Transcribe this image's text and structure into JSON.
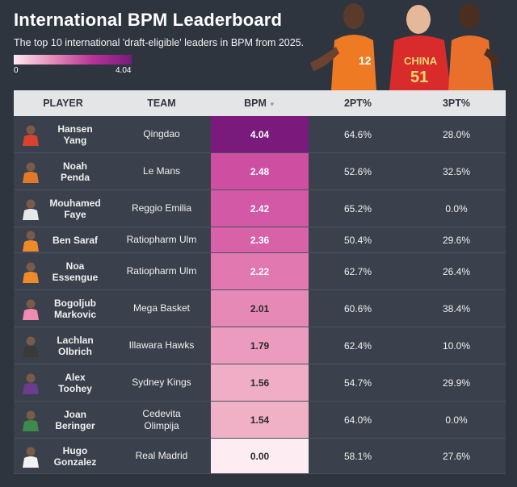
{
  "title": "International BPM Leaderboard",
  "subtitle": "The top 10 international 'draft-eligible' leaders in BPM from 2025.",
  "scale": {
    "min_label": "0",
    "max_label": "4.04"
  },
  "headers": {
    "player": "PLAYER",
    "team": "TEAM",
    "bpm": "BPM",
    "two_pt": "2PT%",
    "three_pt": "3PT%"
  },
  "photo_jersey_text": "CHINA",
  "photo_jersey_number": "51",
  "photo_jersey_number_left": "12",
  "colors": {
    "background": "#2f353f",
    "header_bg": "#e4e5e7",
    "bpm_high": "#7a1a7d",
    "bpm_low": "#fde8ef"
  },
  "chart_data": {
    "type": "table",
    "title": "International BPM Leaderboard",
    "subtitle": "The top 10 international 'draft-eligible' leaders in BPM from 2025.",
    "columns": [
      "PLAYER",
      "TEAM",
      "BPM",
      "2PT%",
      "3PT%"
    ],
    "sort_column": "BPM",
    "color_scale": {
      "column": "BPM",
      "min": 0,
      "max": 4.04
    },
    "rows": [
      {
        "player": "Hansen Yang",
        "player_lines": [
          "Hansen",
          "Yang"
        ],
        "team": "Qingdao",
        "team_lines": [
          "Qingdao"
        ],
        "bpm": 4.04,
        "bpm_text": "4.04",
        "two_pt": "64.6%",
        "three_pt": "28.0%",
        "jersey": "#d8412f"
      },
      {
        "player": "Noah Penda",
        "player_lines": [
          "Noah",
          "Penda"
        ],
        "team": "Le Mans",
        "team_lines": [
          "Le Mans"
        ],
        "bpm": 2.48,
        "bpm_text": "2.48",
        "two_pt": "52.6%",
        "three_pt": "32.5%",
        "jersey": "#e07a2a"
      },
      {
        "player": "Mouhamed Faye",
        "player_lines": [
          "Mouhamed",
          "Faye"
        ],
        "team": "Reggio Emilia",
        "team_lines": [
          "Reggio Emilia"
        ],
        "bpm": 2.42,
        "bpm_text": "2.42",
        "two_pt": "65.2%",
        "three_pt": "0.0%",
        "jersey": "#e8e8e8"
      },
      {
        "player": "Ben Saraf",
        "player_lines": [
          "Ben Saraf"
        ],
        "team": "Ratiopharm Ulm",
        "team_lines": [
          "Ratiopharm Ulm"
        ],
        "bpm": 2.36,
        "bpm_text": "2.36",
        "two_pt": "50.4%",
        "three_pt": "29.6%",
        "jersey": "#ee8a2a"
      },
      {
        "player": "Noa Essengue",
        "player_lines": [
          "Noa",
          "Essengue"
        ],
        "team": "Ratiopharm Ulm",
        "team_lines": [
          "Ratiopharm Ulm"
        ],
        "bpm": 2.22,
        "bpm_text": "2.22",
        "two_pt": "62.7%",
        "three_pt": "26.4%",
        "jersey": "#ee8a2a"
      },
      {
        "player": "Bogoljub Markovic",
        "player_lines": [
          "Bogoljub",
          "Markovic"
        ],
        "team": "Mega Basket",
        "team_lines": [
          "Mega Basket"
        ],
        "bpm": 2.01,
        "bpm_text": "2.01",
        "two_pt": "60.6%",
        "three_pt": "38.4%",
        "jersey": "#f08cb0"
      },
      {
        "player": "Lachlan Olbrich",
        "player_lines": [
          "Lachlan",
          "Olbrich"
        ],
        "team": "Illawara Hawks",
        "team_lines": [
          "Illawara Hawks"
        ],
        "bpm": 1.79,
        "bpm_text": "1.79",
        "two_pt": "62.4%",
        "three_pt": "10.0%",
        "jersey": "#3a3a3a"
      },
      {
        "player": "Alex Toohey",
        "player_lines": [
          "Alex",
          "Toohey"
        ],
        "team": "Sydney Kings",
        "team_lines": [
          "Sydney Kings"
        ],
        "bpm": 1.56,
        "bpm_text": "1.56",
        "two_pt": "54.7%",
        "three_pt": "29.9%",
        "jersey": "#6b3d8c"
      },
      {
        "player": "Joan Beringer",
        "player_lines": [
          "Joan",
          "Beringer"
        ],
        "team": "Cedevita Olimpija",
        "team_lines": [
          "Cedevita",
          "Olimpija"
        ],
        "bpm": 1.54,
        "bpm_text": "1.54",
        "two_pt": "64.0%",
        "three_pt": "0.0%",
        "jersey": "#3d8a4a"
      },
      {
        "player": "Hugo Gonzalez",
        "player_lines": [
          "Hugo",
          "Gonzalez"
        ],
        "team": "Real Madrid",
        "team_lines": [
          "Real Madrid"
        ],
        "bpm": 0.0,
        "bpm_text": "0.00",
        "two_pt": "58.1%",
        "three_pt": "27.6%",
        "jersey": "#f2f2f2"
      }
    ]
  }
}
